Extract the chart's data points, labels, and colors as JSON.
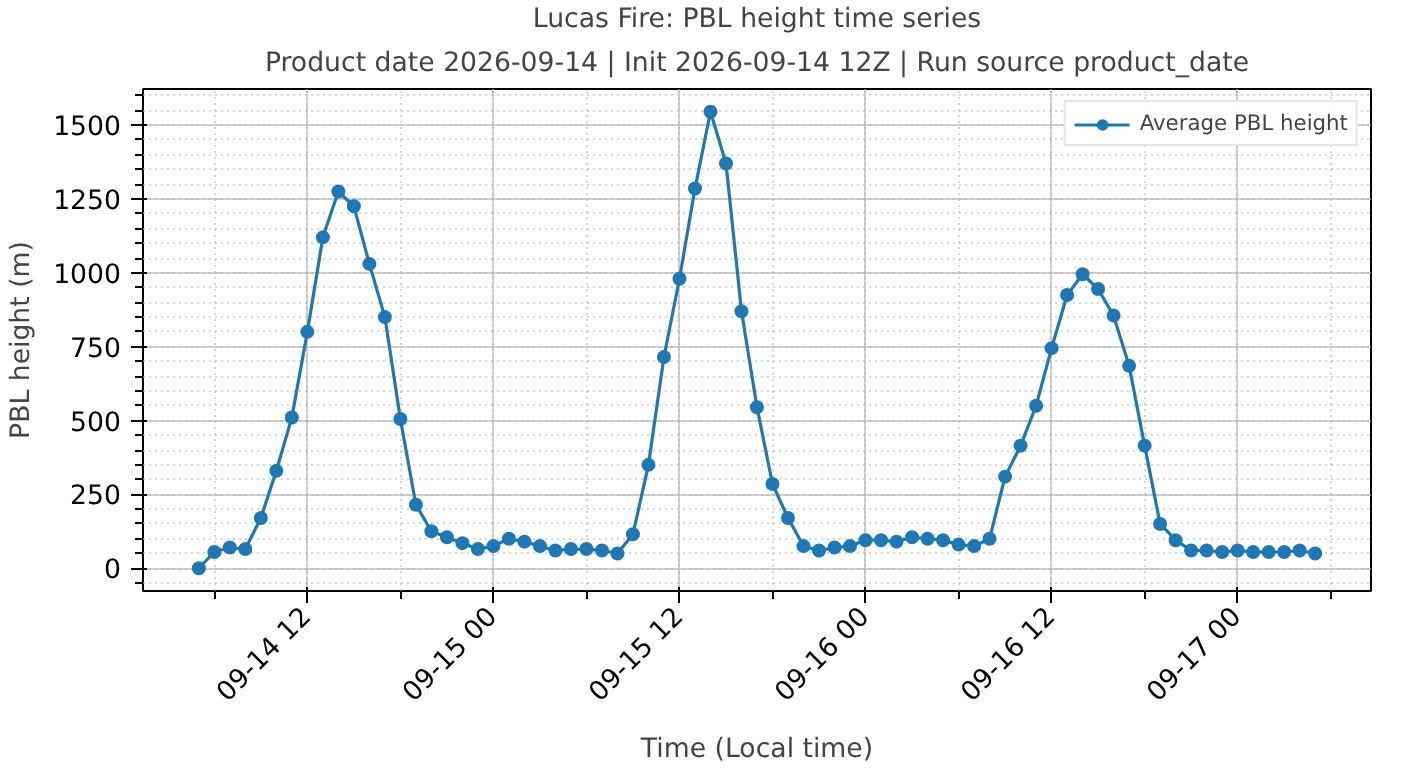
{
  "chart_data": {
    "type": "line",
    "title": "Lucas Fire: PBL height time series",
    "subtitle": "Product date 2026-09-14 | Init 2026-09-14 12Z | Run source product_date",
    "xlabel": "Time (Local time)",
    "ylabel": "PBL height (m)",
    "x": [
      "2026-09-14T05:00",
      "2026-09-14T06:00",
      "2026-09-14T07:00",
      "2026-09-14T08:00",
      "2026-09-14T09:00",
      "2026-09-14T10:00",
      "2026-09-14T11:00",
      "2026-09-14T12:00",
      "2026-09-14T13:00",
      "2026-09-14T14:00",
      "2026-09-14T15:00",
      "2026-09-14T16:00",
      "2026-09-14T17:00",
      "2026-09-14T18:00",
      "2026-09-14T19:00",
      "2026-09-14T20:00",
      "2026-09-14T21:00",
      "2026-09-14T22:00",
      "2026-09-14T23:00",
      "2026-09-15T00:00",
      "2026-09-15T01:00",
      "2026-09-15T02:00",
      "2026-09-15T03:00",
      "2026-09-15T04:00",
      "2026-09-15T05:00",
      "2026-09-15T06:00",
      "2026-09-15T07:00",
      "2026-09-15T08:00",
      "2026-09-15T09:00",
      "2026-09-15T10:00",
      "2026-09-15T11:00",
      "2026-09-15T12:00",
      "2026-09-15T13:00",
      "2026-09-15T14:00",
      "2026-09-15T15:00",
      "2026-09-15T16:00",
      "2026-09-15T17:00",
      "2026-09-15T18:00",
      "2026-09-15T19:00",
      "2026-09-15T20:00",
      "2026-09-15T21:00",
      "2026-09-15T22:00",
      "2026-09-15T23:00",
      "2026-09-16T00:00",
      "2026-09-16T01:00",
      "2026-09-16T02:00",
      "2026-09-16T03:00",
      "2026-09-16T04:00",
      "2026-09-16T05:00",
      "2026-09-16T06:00",
      "2026-09-16T07:00",
      "2026-09-16T08:00",
      "2026-09-16T09:00",
      "2026-09-16T10:00",
      "2026-09-16T11:00",
      "2026-09-16T12:00",
      "2026-09-16T13:00",
      "2026-09-16T14:00",
      "2026-09-16T15:00",
      "2026-09-16T16:00",
      "2026-09-16T17:00",
      "2026-09-16T18:00",
      "2026-09-16T19:00",
      "2026-09-16T20:00",
      "2026-09-16T21:00",
      "2026-09-16T22:00",
      "2026-09-16T23:00",
      "2026-09-17T00:00",
      "2026-09-17T01:00",
      "2026-09-17T02:00",
      "2026-09-17T03:00",
      "2026-09-17T04:00",
      "2026-09-17T05:00"
    ],
    "series": [
      {
        "name": "Average PBL height",
        "color": "#1f77b4",
        "values": [
          0,
          55,
          70,
          65,
          170,
          330,
          510,
          800,
          1120,
          1275,
          1225,
          1030,
          850,
          505,
          215,
          125,
          105,
          85,
          65,
          75,
          100,
          90,
          75,
          60,
          65,
          65,
          60,
          50,
          115,
          350,
          715,
          980,
          1285,
          1545,
          1370,
          870,
          545,
          285,
          170,
          75,
          60,
          70,
          75,
          95,
          95,
          90,
          105,
          100,
          95,
          80,
          75,
          100,
          310,
          415,
          550,
          745,
          925,
          995,
          945,
          855,
          685,
          415,
          150,
          95,
          60,
          60,
          55,
          60,
          55,
          55,
          55,
          60,
          50
        ]
      }
    ],
    "xlim": [
      "2026-09-14T01:24",
      "2026-09-17T08:36"
    ],
    "xticks": [
      {
        "value": "2026-09-14T12:00",
        "label": "09-14 12"
      },
      {
        "value": "2026-09-15T00:00",
        "label": "09-15 00"
      },
      {
        "value": "2026-09-15T12:00",
        "label": "09-15 12"
      },
      {
        "value": "2026-09-16T00:00",
        "label": "09-16 00"
      },
      {
        "value": "2026-09-16T12:00",
        "label": "09-16 12"
      },
      {
        "value": "2026-09-17T00:00",
        "label": "09-17 00"
      }
    ],
    "ylim": [
      -77,
      1622
    ],
    "yticks": [
      0,
      250,
      500,
      750,
      1000,
      1250,
      1500
    ],
    "grid": true,
    "legend": "top right",
    "marker": "circle",
    "line_style": "solid"
  }
}
